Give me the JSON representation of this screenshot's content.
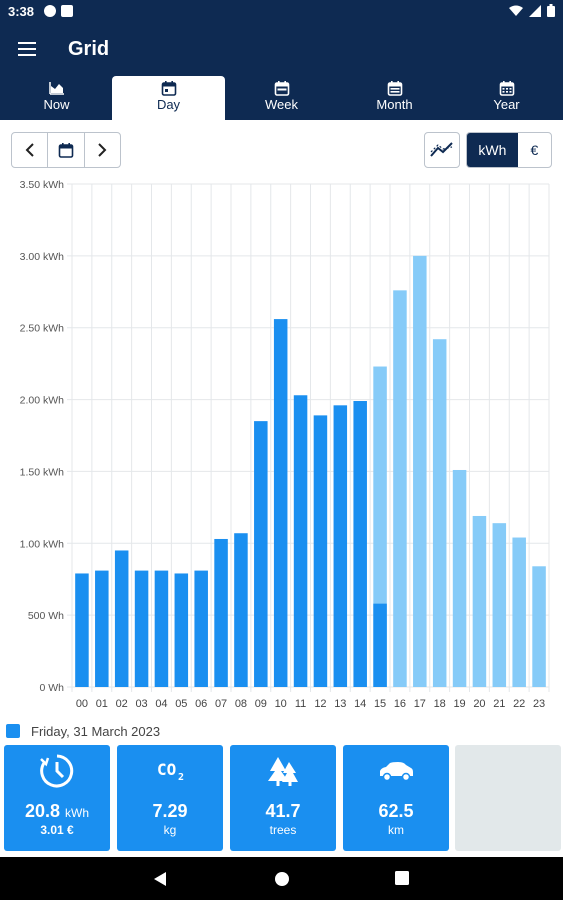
{
  "status": {
    "time": "3:38"
  },
  "app": {
    "title": "Grid"
  },
  "tabs": [
    {
      "label": "Now",
      "icon": "area-chart-icon"
    },
    {
      "label": "Day",
      "icon": "calendar-icon"
    },
    {
      "label": "Week",
      "icon": "calendar-icon"
    },
    {
      "label": "Month",
      "icon": "calendar-icon"
    },
    {
      "label": "Year",
      "icon": "calendar-icon"
    }
  ],
  "active_tab": "Day",
  "units": {
    "kwh": "kWh",
    "eur": "€",
    "selected": "kWh"
  },
  "legend": {
    "label": "Friday, 31 March 2023"
  },
  "tiles": {
    "energy": {
      "value": "20.8",
      "unit": "kWh",
      "cost": "3.01 €"
    },
    "co2": {
      "value": "7.29",
      "unit": "kg"
    },
    "trees": {
      "value": "41.7",
      "unit": "trees"
    },
    "distance": {
      "value": "62.5",
      "unit": "km"
    }
  },
  "colors": {
    "header": "#0e2a52",
    "bar_actual": "#1a8ff0",
    "bar_forecast": "#86cbf8",
    "tile": "#1a8ff0"
  },
  "chart_data": {
    "type": "bar",
    "categories": [
      "00",
      "01",
      "02",
      "03",
      "04",
      "05",
      "06",
      "07",
      "08",
      "09",
      "10",
      "11",
      "12",
      "13",
      "14",
      "15",
      "16",
      "17",
      "18",
      "19",
      "20",
      "21",
      "22",
      "23"
    ],
    "series": [
      {
        "name": "Friday, 31 March 2023",
        "values": [
          0.79,
          0.81,
          0.95,
          0.81,
          0.81,
          0.79,
          0.81,
          1.03,
          1.07,
          1.85,
          2.56,
          2.03,
          1.89,
          1.96,
          1.99,
          0.58,
          0,
          0,
          0,
          0,
          0,
          0,
          0,
          0
        ]
      },
      {
        "values": [
          0,
          0,
          0,
          0,
          0,
          0,
          0,
          0,
          0,
          0,
          0,
          0,
          0,
          0,
          0,
          2.23,
          2.76,
          3.0,
          2.42,
          1.51,
          1.19,
          1.14,
          1.04,
          0.84
        ]
      }
    ],
    "y_ticks": [
      "0 Wh",
      "500 Wh",
      "1.00 kWh",
      "1.50 kWh",
      "2.00 kWh",
      "2.50 kWh",
      "3.00 kWh",
      "3.50 kWh"
    ],
    "ylim": [
      0,
      3.5
    ],
    "grid": true,
    "legend": "bottom-left"
  }
}
